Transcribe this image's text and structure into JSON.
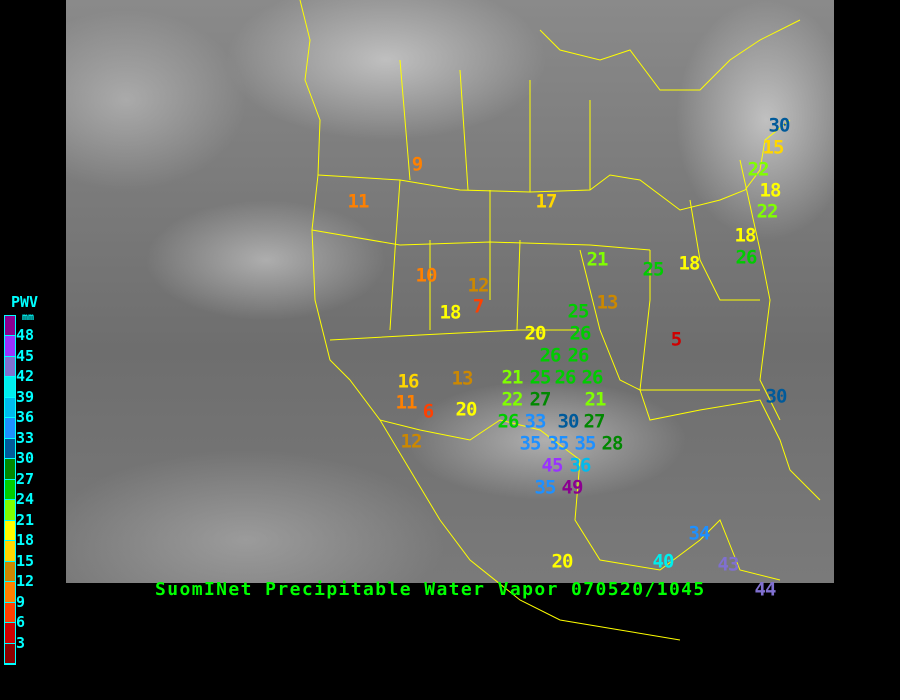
{
  "title": "SuomINet Precipitable Water Vapor 070520/1045",
  "legend": {
    "title": "PWV",
    "unit": "mm",
    "ticks": [
      "48",
      "45",
      "42",
      "39",
      "36",
      "33",
      "30",
      "27",
      "24",
      "21",
      "18",
      "15",
      "12",
      "9",
      "6",
      "3"
    ],
    "colors": [
      "#8b0090",
      "#9933ff",
      "#8070d0",
      "#00eeee",
      "#00bbee",
      "#1e90ff",
      "#005a9a",
      "#008800",
      "#00cc00",
      "#80ff00",
      "#ffff00",
      "#ffd700",
      "#cc8800",
      "#ff8000",
      "#ff4000",
      "#d00000",
      "#8b0000"
    ]
  },
  "border_color": "#ffff00",
  "stations": [
    {
      "value": "9"
    },
    {
      "value": "11"
    },
    {
      "value": "17"
    },
    {
      "value": "10"
    },
    {
      "value": "12"
    },
    {
      "value": "7"
    },
    {
      "value": "18"
    },
    {
      "value": "13"
    },
    {
      "value": "20"
    },
    {
      "value": "25"
    },
    {
      "value": "26"
    },
    {
      "value": "26"
    },
    {
      "value": "26"
    },
    {
      "value": "21"
    },
    {
      "value": "25"
    },
    {
      "value": "26"
    },
    {
      "value": "26"
    },
    {
      "value": "22"
    },
    {
      "value": "27"
    },
    {
      "value": "21"
    },
    {
      "value": "26"
    },
    {
      "value": "33"
    },
    {
      "value": "30"
    },
    {
      "value": "27"
    },
    {
      "value": "28"
    },
    {
      "value": "35"
    },
    {
      "value": "35"
    },
    {
      "value": "35"
    },
    {
      "value": "36"
    },
    {
      "value": "45"
    },
    {
      "value": "49"
    },
    {
      "value": "35"
    },
    {
      "value": "16"
    },
    {
      "value": "13"
    },
    {
      "value": "11"
    },
    {
      "value": "6"
    },
    {
      "value": "20"
    },
    {
      "value": "12"
    },
    {
      "value": "5"
    },
    {
      "value": "21"
    },
    {
      "value": "25"
    },
    {
      "value": "18"
    },
    {
      "value": "18"
    },
    {
      "value": "26"
    },
    {
      "value": "22"
    },
    {
      "value": "22"
    },
    {
      "value": "18"
    },
    {
      "value": "15"
    },
    {
      "value": "30"
    },
    {
      "value": "30"
    },
    {
      "value": "34"
    },
    {
      "value": "43"
    },
    {
      "value": "44"
    },
    {
      "value": "20"
    },
    {
      "value": "40"
    }
  ]
}
